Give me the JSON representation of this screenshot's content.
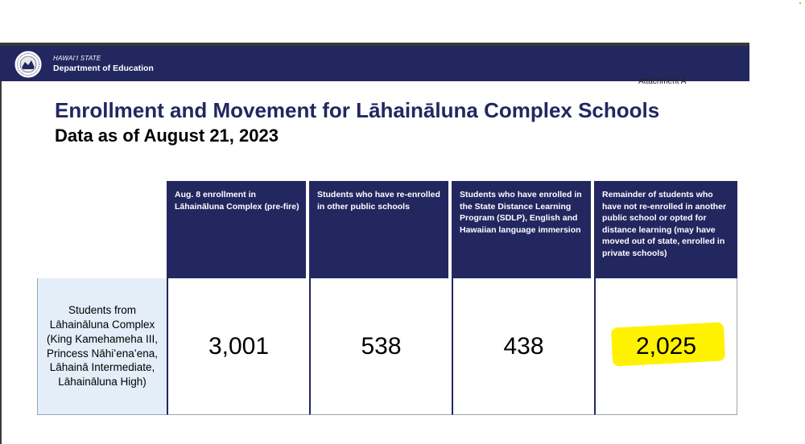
{
  "header": {
    "org_state": "HAWAIʻI STATE",
    "org_name": "Department of Education",
    "attachment": "Attachment A",
    "brand_color": "#232760"
  },
  "title": "Enrollment and Movement for Lāhaināluna Complex Schools",
  "subtitle": "Data as of August 21, 2023",
  "table": {
    "columns": [
      "Aug. 8 enrollment in Lāhaināluna Complex (pre-fire)",
      "Students who have re-enrolled in other public schools",
      "Students who have enrolled in the State Distance Learning Program (SDLP), English and Hawaiian language immersion",
      "Remainder of students who have not re-enrolled in another public school or opted for distance learning (may have moved out of state, enrolled in private schools)"
    ],
    "row_label": "Students from Lāhaināluna Complex (King Kamehameha III, Princess Nāhiʻenaʻena, Lāhainā Intermediate, Lāhaināluna High)",
    "values": [
      "3,001",
      "538",
      "438",
      "2,025"
    ],
    "highlight_color": "#fff200"
  }
}
